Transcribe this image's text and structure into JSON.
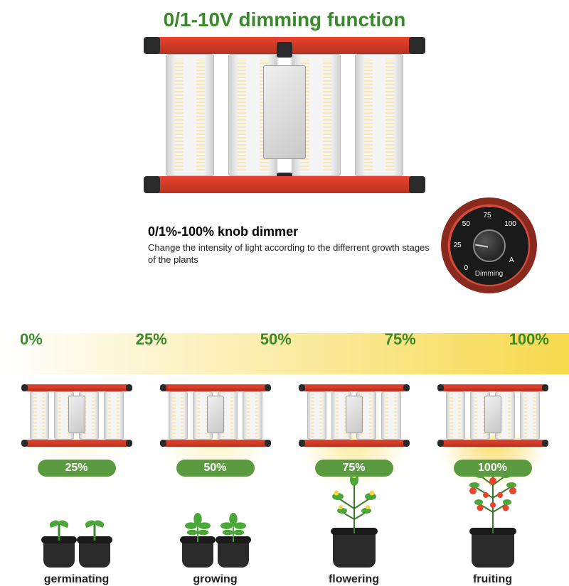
{
  "colors": {
    "title_green": "#3a8a2c",
    "frame_red": "#e8432e",
    "knob_ring": "#d94a3a",
    "badge_green": "#5a9b3f",
    "scale_green": "#3a8a2c",
    "gradient_start": "#ffffff",
    "gradient_end": "#f7d94c",
    "glow_25": "rgba(255,240,180,0.35)",
    "glow_50": "rgba(255,235,150,0.55)",
    "glow_75": "rgba(255,225,110,0.75)",
    "glow_100": "rgba(255,215,80,0.95)",
    "fruit_red": "#e8432e",
    "leaf_green": "#4aa838",
    "flower_yellow": "#f5d742"
  },
  "title": "0/1-10V dimming function",
  "dimmer": {
    "heading": "0/1%-100% knob dimmer",
    "description": "Change the intensity of light according to the differrent growth stages of the plants",
    "ticks": [
      {
        "label": "0",
        "angle": -140
      },
      {
        "label": "25",
        "angle": -90
      },
      {
        "label": "50",
        "angle": -45
      },
      {
        "label": "75",
        "angle": 0
      },
      {
        "label": "100",
        "angle": 45
      },
      {
        "label": "A",
        "angle": 120
      }
    ],
    "bottom_label": "Dimming"
  },
  "scale": [
    "0%",
    "25%",
    "50%",
    "75%",
    "100%"
  ],
  "stages": [
    {
      "badge": "25%",
      "caption": "germinating",
      "glow_key": "glow_25",
      "plant": "seedling"
    },
    {
      "badge": "50%",
      "caption": "growing",
      "glow_key": "glow_50",
      "plant": "bush"
    },
    {
      "badge": "75%",
      "caption": "flowering",
      "glow_key": "glow_75",
      "plant": "flowering"
    },
    {
      "badge": "100%",
      "caption": "fruiting",
      "glow_key": "glow_100",
      "plant": "fruiting"
    }
  ]
}
